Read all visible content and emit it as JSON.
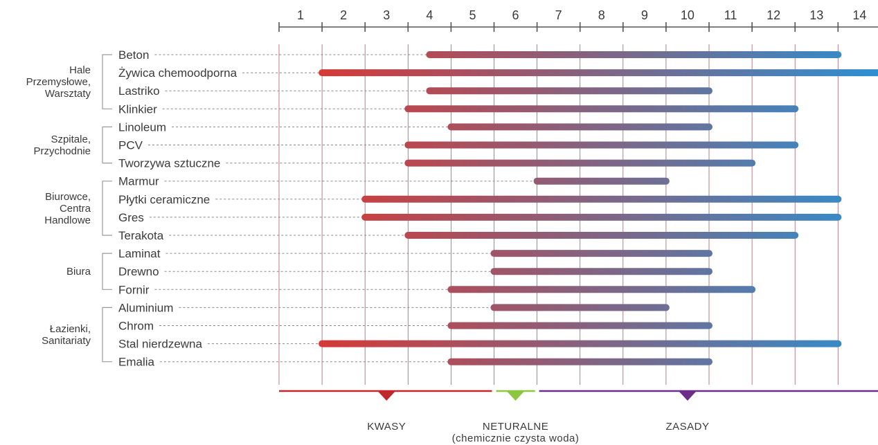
{
  "chart_data": {
    "type": "range-bar",
    "ticks": [
      "1",
      "2",
      "3",
      "4",
      "5",
      "6",
      "7",
      "8",
      "9",
      "10",
      "11",
      "12",
      "13",
      "14"
    ],
    "xlim": [
      0.5,
      14.5
    ],
    "grid": true,
    "gradient_colors": [
      "#e0342c",
      "#2e8fd0"
    ],
    "rows": [
      {
        "label": "Beton",
        "start": 4,
        "end": 13.5
      },
      {
        "label": "Żywica chemoodporna",
        "start": 1.5,
        "end": 14.5
      },
      {
        "label": "Lastriko",
        "start": 4,
        "end": 10.5
      },
      {
        "label": "Klinkier",
        "start": 3.5,
        "end": 12.5
      },
      {
        "label": "Linoleum",
        "start": 4.5,
        "end": 10.5
      },
      {
        "label": "PCV",
        "start": 3.5,
        "end": 12.5
      },
      {
        "label": "Tworzywa sztuczne",
        "start": 3.5,
        "end": 11.5
      },
      {
        "label": "Marmur",
        "start": 6.5,
        "end": 9.5
      },
      {
        "label": "Płytki ceramiczne",
        "start": 2.5,
        "end": 13.5
      },
      {
        "label": "Gres",
        "start": 2.5,
        "end": 13.5
      },
      {
        "label": "Terakota",
        "start": 3.5,
        "end": 12.5
      },
      {
        "label": "Laminat",
        "start": 5.5,
        "end": 10.5
      },
      {
        "label": "Drewno",
        "start": 5.5,
        "end": 10.5
      },
      {
        "label": "Fornir",
        "start": 4.5,
        "end": 11.5
      },
      {
        "label": "Aluminium",
        "start": 5.5,
        "end": 9.5
      },
      {
        "label": "Chrom",
        "start": 4.5,
        "end": 10.5
      },
      {
        "label": "Stal nierdzewna",
        "start": 1.5,
        "end": 13.5
      },
      {
        "label": "Emalia",
        "start": 4.5,
        "end": 10.5
      }
    ],
    "groups": [
      {
        "lines": [
          "Hale",
          "Przemysłowe,",
          "Warsztaty"
        ],
        "first": 0,
        "last": 3
      },
      {
        "lines": [
          "Szpitale,",
          "Przychodnie"
        ],
        "first": 4,
        "last": 6
      },
      {
        "lines": [
          "Biurowce,",
          "Centra",
          "Handlowe"
        ],
        "first": 7,
        "last": 10
      },
      {
        "lines": [
          "Biura"
        ],
        "first": 11,
        "last": 13
      },
      {
        "lines": [
          "Łazienki,",
          "Sanitariaty"
        ],
        "first": 14,
        "last": 17
      }
    ],
    "zones": [
      {
        "label": "KWASY",
        "sub": "",
        "from": 0.5,
        "to": 5.5,
        "marker": 3,
        "color": "#c0282d"
      },
      {
        "label": "NETURALNE",
        "sub": "(chemicznie czysta woda)",
        "from": 5.5,
        "to": 6.5,
        "marker": 6,
        "color": "#8dc63f"
      },
      {
        "label": "ZASADY",
        "sub": "",
        "from": 6.5,
        "to": 14.5,
        "marker": 10,
        "color": "#6b2f8a"
      }
    ]
  }
}
